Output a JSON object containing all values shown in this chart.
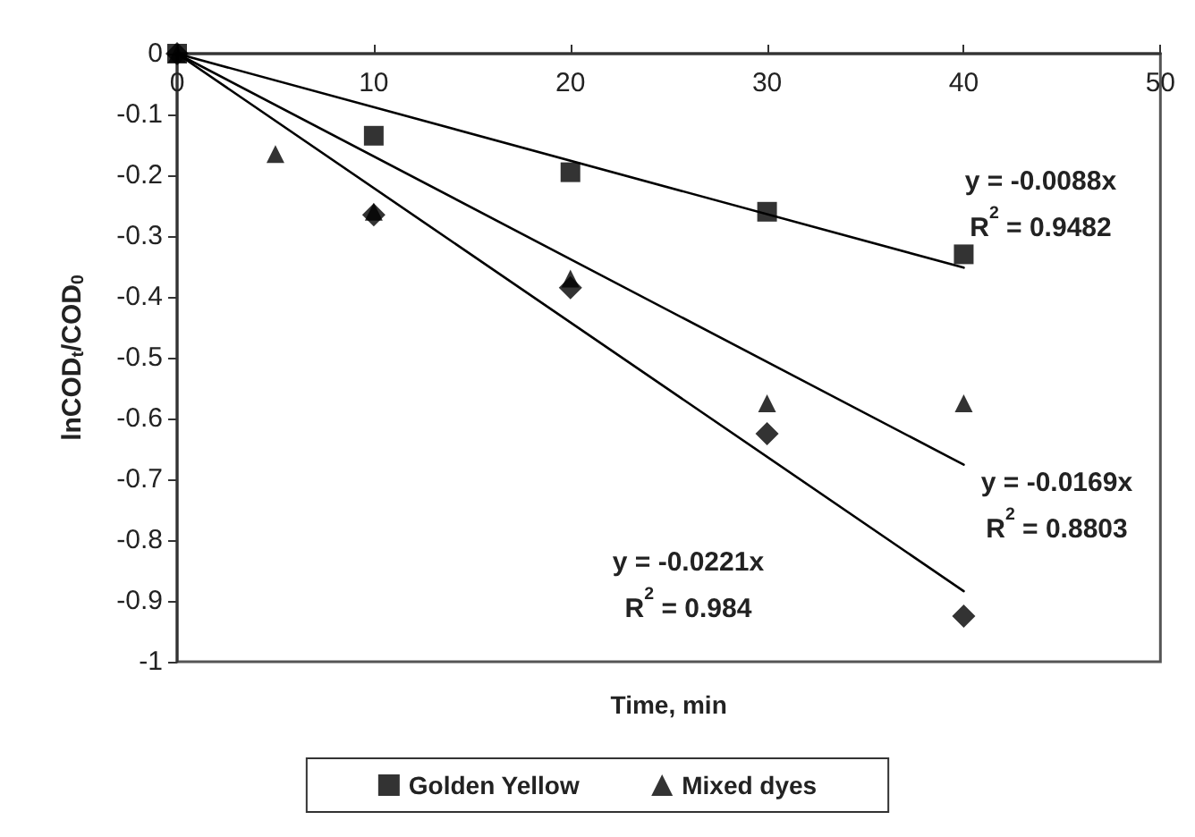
{
  "chart_data": {
    "type": "scatter",
    "xlabel": "Time, min",
    "ylabel": "lnCOD$_{t}$/COD$_{0}$",
    "xlim": [
      0,
      50
    ],
    "xticks": [
      0,
      10,
      20,
      30,
      40,
      50
    ],
    "ylim": [
      -1,
      0
    ],
    "yticks": [
      -1,
      -0.9,
      -0.8,
      -0.7,
      -0.6,
      -0.5,
      -0.4,
      -0.3,
      -0.2,
      -0.1,
      0
    ],
    "grid": false,
    "legend": "bottom",
    "series": [
      {
        "color": "#000000",
        "marker": "diamond",
        "x": [
          0,
          10,
          20,
          30,
          40
        ],
        "values": [
          0,
          -0.265,
          -0.385,
          -0.625,
          -0.925
        ]
      },
      {
        "name": "Golden Yellow",
        "color": "#000000",
        "marker": "square",
        "x": [
          0,
          10,
          20,
          30,
          40
        ],
        "values": [
          0,
          -0.135,
          -0.195,
          -0.26,
          -0.33
        ]
      },
      {
        "name": "Mixed dyes",
        "color": "#000000",
        "marker": "triangle",
        "x": [
          0,
          5,
          10,
          20,
          30,
          40
        ],
        "values": [
          0,
          -0.165,
          -0.26,
          -0.37,
          -0.575,
          -0.575
        ]
      },
      {
        "type": "line",
        "color": "#000000",
        "marker": "none",
        "line_style": "solid",
        "x": [
          0,
          40
        ],
        "values": [
          0,
          -0.352
        ]
      },
      {
        "type": "line",
        "color": "#000000",
        "marker": "none",
        "line_style": "solid",
        "x": [
          0,
          40
        ],
        "values": [
          0,
          -0.676
        ]
      },
      {
        "type": "line",
        "color": "#000000",
        "marker": "none",
        "line_style": "solid",
        "x": [
          0,
          40
        ],
        "values": [
          0,
          -0.884
        ]
      }
    ],
    "annotations": [
      "y = -0.0088x\nR$^{2}$ = 0.9482",
      "y = -0.0169x\nR$^{2}$ = 0.8803",
      "y = -0.0221x\nR$^{2}$ = 0.984"
    ]
  }
}
